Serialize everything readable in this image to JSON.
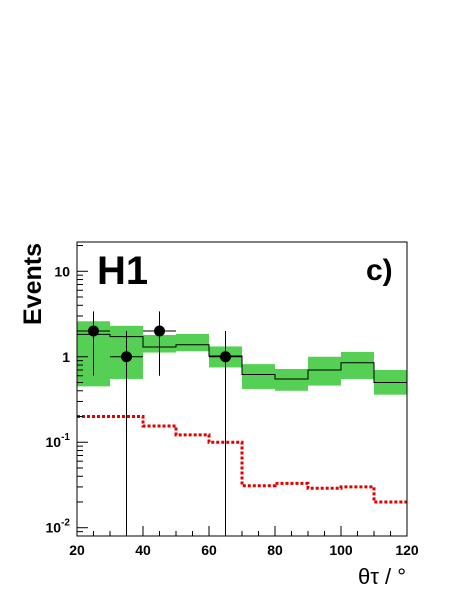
{
  "chart_data": {
    "type": "histogram",
    "title": "H1",
    "panel_label": "c)",
    "xlabel": "θτ / °",
    "ylabel": "Events",
    "xlim": [
      20,
      120
    ],
    "ylim": [
      0.008,
      22
    ],
    "yscale": "log",
    "grid": false,
    "x_ticks": [
      20,
      40,
      60,
      80,
      100,
      120
    ],
    "y_tick_labels": [
      {
        "value": 0.01,
        "base": "10",
        "exp": "-2"
      },
      {
        "value": 0.1,
        "base": "10",
        "exp": "-1"
      },
      {
        "value": 1,
        "base": "1",
        "exp": ""
      },
      {
        "value": 10,
        "base": "10",
        "exp": ""
      }
    ],
    "bin_edges": [
      20,
      30,
      40,
      50,
      60,
      70,
      80,
      90,
      100,
      110,
      120
    ],
    "series": [
      {
        "kind": "band",
        "color": "#55d055",
        "low": [
          0.45,
          0.55,
          1.12,
          1.16,
          0.75,
          0.42,
          0.4,
          0.46,
          0.55,
          0.36
        ],
        "high": [
          2.6,
          2.3,
          1.8,
          1.85,
          1.32,
          0.82,
          0.72,
          1.0,
          1.14,
          0.7
        ]
      },
      {
        "kind": "step",
        "color": "#000000",
        "values": [
          1.83,
          1.72,
          1.3,
          1.38,
          1.02,
          0.62,
          0.55,
          0.7,
          0.85,
          0.5
        ]
      },
      {
        "kind": "step-dashed",
        "color": "#e00000",
        "values": [
          0.2,
          0.2,
          0.155,
          0.122,
          0.1,
          0.031,
          0.033,
          0.029,
          0.03,
          0.02
        ]
      },
      {
        "kind": "points",
        "color": "#000000",
        "x": [
          25,
          35,
          45,
          65
        ],
        "y": [
          2.0,
          1.0,
          2.0,
          1.0
        ],
        "xerr": [
          5,
          5,
          5,
          5
        ],
        "ylow": [
          0.6,
          0.004,
          0.6,
          0.004
        ],
        "yhigh": [
          3.4,
          2.0,
          3.4,
          2.0
        ]
      }
    ]
  }
}
